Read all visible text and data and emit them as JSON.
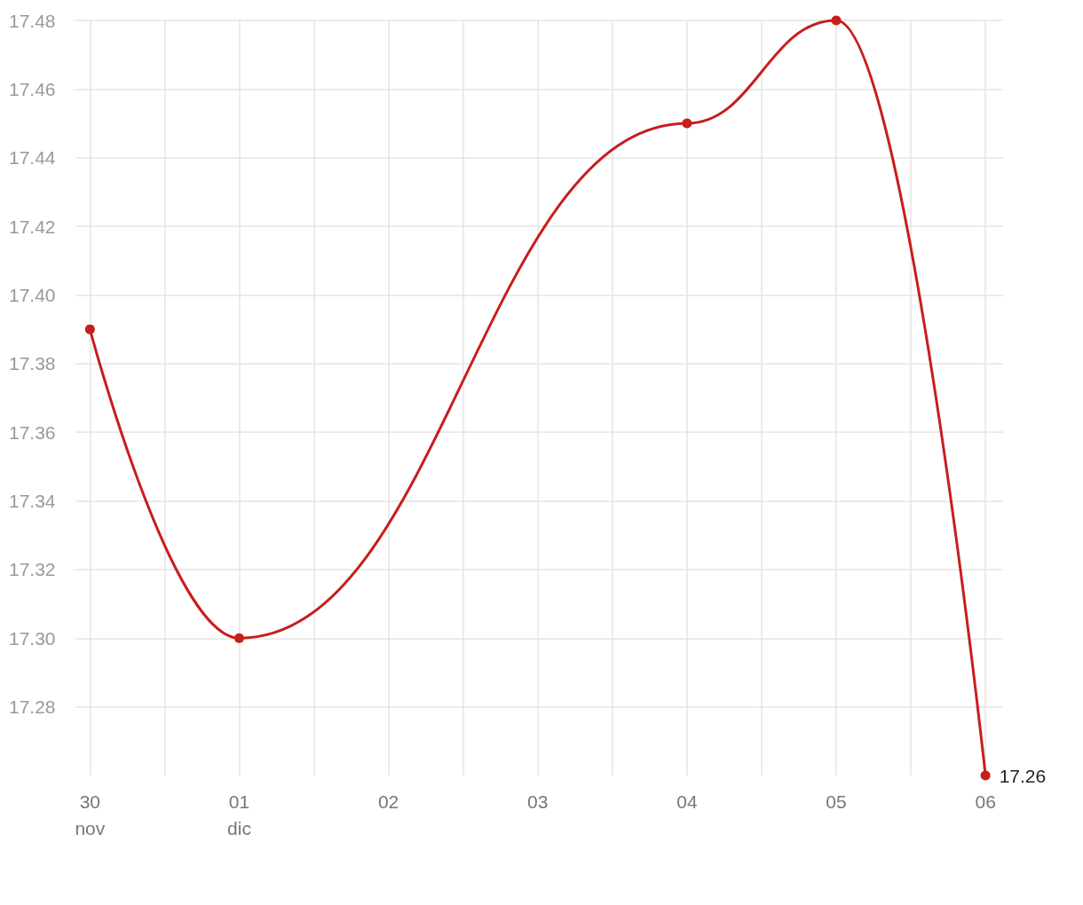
{
  "chart_data": {
    "type": "line",
    "x": [
      "--11-30",
      "--12-01",
      "--12-04",
      "--12-05",
      "--12-06"
    ],
    "series": [
      {
        "color": "#c71e1d",
        "values": [
          17.39,
          17.3,
          17.45,
          17.48,
          17.26
        ],
        "value_labels": [
          null,
          null,
          null,
          null,
          "17.26"
        ]
      }
    ],
    "xlim": [
      "--11-29T21:40",
      "--12-06T02:50"
    ],
    "xticks": [
      {
        "value": "--11-30",
        "label": "30\nnov"
      },
      {
        "value": "--11-30T12:00",
        "label": null
      },
      {
        "value": "--12-01",
        "label": "01\ndic"
      },
      {
        "value": "--12-01T12:00",
        "label": null
      },
      {
        "value": "--12-02",
        "label": "02"
      },
      {
        "value": "--12-02T12:00",
        "label": null
      },
      {
        "value": "--12-03",
        "label": "03"
      },
      {
        "value": "--12-03T12:00",
        "label": null
      },
      {
        "value": "--12-04",
        "label": "04"
      },
      {
        "value": "--12-04T12:00",
        "label": null
      },
      {
        "value": "--12-05",
        "label": "05"
      },
      {
        "value": "--12-05T12:00",
        "label": null
      },
      {
        "value": "--12-06",
        "label": "06"
      }
    ],
    "ylim": [
      17.26,
      17.48
    ],
    "yticks": [
      {
        "value": 17.28,
        "label": "17.28"
      },
      {
        "value": 17.3,
        "label": "17.30"
      },
      {
        "value": 17.32,
        "label": "17.32"
      },
      {
        "value": 17.34,
        "label": "17.34"
      },
      {
        "value": 17.36,
        "label": "17.36"
      },
      {
        "value": 17.38,
        "label": "17.38"
      },
      {
        "value": 17.4,
        "label": "17.40"
      },
      {
        "value": 17.42,
        "label": "17.42"
      },
      {
        "value": 17.44,
        "label": "17.44"
      },
      {
        "value": 17.46,
        "label": "17.46"
      },
      {
        "value": 17.48,
        "label": "17.48"
      }
    ],
    "grid": true,
    "marker": "circle",
    "line_style": "solid"
  }
}
